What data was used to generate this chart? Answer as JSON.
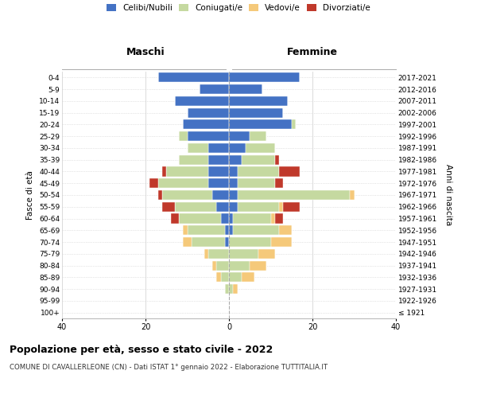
{
  "age_groups": [
    "100+",
    "95-99",
    "90-94",
    "85-89",
    "80-84",
    "75-79",
    "70-74",
    "65-69",
    "60-64",
    "55-59",
    "50-54",
    "45-49",
    "40-44",
    "35-39",
    "30-34",
    "25-29",
    "20-24",
    "15-19",
    "10-14",
    "5-9",
    "0-4"
  ],
  "birth_years": [
    "≤ 1921",
    "1922-1926",
    "1927-1931",
    "1932-1936",
    "1937-1941",
    "1942-1946",
    "1947-1951",
    "1952-1956",
    "1957-1961",
    "1962-1966",
    "1967-1971",
    "1972-1976",
    "1977-1981",
    "1982-1986",
    "1987-1991",
    "1992-1996",
    "1997-2001",
    "2002-2006",
    "2007-2011",
    "2012-2016",
    "2017-2021"
  ],
  "colors": {
    "celibi": "#4472c4",
    "coniugati": "#c5d9a0",
    "vedovi": "#f5c97a",
    "divorziati": "#c0392b"
  },
  "maschi": {
    "celibi": [
      0,
      0,
      0,
      0,
      0,
      0,
      1,
      1,
      2,
      3,
      4,
      5,
      5,
      5,
      5,
      10,
      11,
      10,
      13,
      7,
      17
    ],
    "coniugati": [
      0,
      0,
      1,
      2,
      3,
      5,
      8,
      9,
      10,
      10,
      12,
      12,
      10,
      7,
      5,
      2,
      0,
      0,
      0,
      0,
      0
    ],
    "vedovi": [
      0,
      0,
      0,
      1,
      1,
      1,
      2,
      1,
      0,
      0,
      0,
      0,
      0,
      0,
      0,
      0,
      0,
      0,
      0,
      0,
      0
    ],
    "divorziati": [
      0,
      0,
      0,
      0,
      0,
      0,
      0,
      0,
      2,
      3,
      1,
      2,
      1,
      0,
      0,
      0,
      0,
      0,
      0,
      0,
      0
    ]
  },
  "femmine": {
    "celibi": [
      0,
      0,
      0,
      0,
      0,
      0,
      0,
      1,
      1,
      2,
      2,
      2,
      2,
      3,
      4,
      5,
      15,
      13,
      14,
      8,
      17
    ],
    "coniugati": [
      0,
      0,
      1,
      3,
      5,
      7,
      10,
      11,
      9,
      10,
      27,
      9,
      10,
      8,
      7,
      4,
      1,
      0,
      0,
      0,
      0
    ],
    "vedovi": [
      0,
      0,
      1,
      3,
      4,
      4,
      5,
      3,
      1,
      1,
      1,
      0,
      0,
      0,
      0,
      0,
      0,
      0,
      0,
      0,
      0
    ],
    "divorziati": [
      0,
      0,
      0,
      0,
      0,
      0,
      0,
      0,
      2,
      4,
      0,
      2,
      5,
      1,
      0,
      0,
      0,
      0,
      0,
      0,
      0
    ]
  },
  "xlim": 40,
  "title": "Popolazione per età, sesso e stato civile - 2022",
  "subtitle": "COMUNE DI CAVALLERLEONE (CN) - Dati ISTAT 1° gennaio 2022 - Elaborazione TUTTITALIA.IT",
  "ylabel_left": "Fasce di età",
  "ylabel_right": "Anni di nascita",
  "xlabel_maschi": "Maschi",
  "xlabel_femmine": "Femmine",
  "legend_labels": [
    "Celibi/Nubili",
    "Coniugati/e",
    "Vedovi/e",
    "Divorziati/e"
  ],
  "bg_color": "#ffffff",
  "grid_color": "#cccccc",
  "spine_color": "#aaaaaa",
  "center_line_color": "#aaaaaa"
}
